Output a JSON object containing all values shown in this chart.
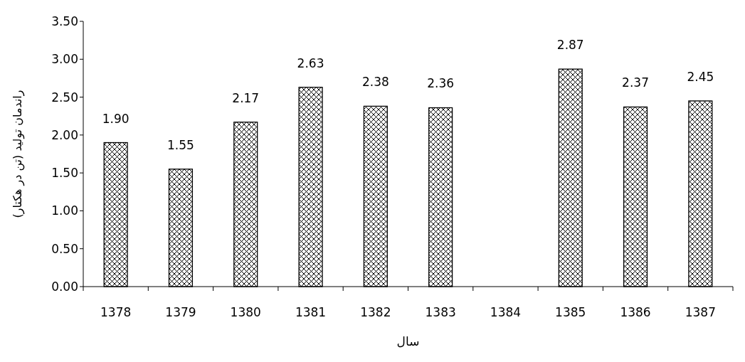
{
  "chart_data": {
    "type": "bar",
    "xlabel": "سال",
    "ylabel": "راندمان تولید (تن در هکتار)",
    "categories": [
      "1378",
      "1379",
      "1380",
      "1381",
      "1382",
      "1383",
      "1384",
      "1385",
      "1386",
      "1387"
    ],
    "values": [
      1.9,
      1.55,
      2.17,
      2.63,
      2.38,
      2.36,
      null,
      2.87,
      2.37,
      2.45
    ],
    "value_labels": [
      "1.90",
      "1.55",
      "2.17",
      "2.63",
      "2.38",
      "2.36",
      null,
      "2.87",
      "2.37",
      "2.45"
    ],
    "color": "#000000",
    "ylim": [
      0,
      3.5
    ],
    "yticks": [
      {
        "value": 0,
        "label": "0.00"
      },
      {
        "value": 0.5,
        "label": "0.50"
      },
      {
        "value": 1,
        "label": "1.00"
      },
      {
        "value": 1.5,
        "label": "1.50"
      },
      {
        "value": 2,
        "label": "2.00"
      },
      {
        "value": 2.5,
        "label": "2.50"
      },
      {
        "value": 3,
        "label": "3.00"
      },
      {
        "value": 3.5,
        "label": "3.50"
      }
    ],
    "grid": false
  }
}
